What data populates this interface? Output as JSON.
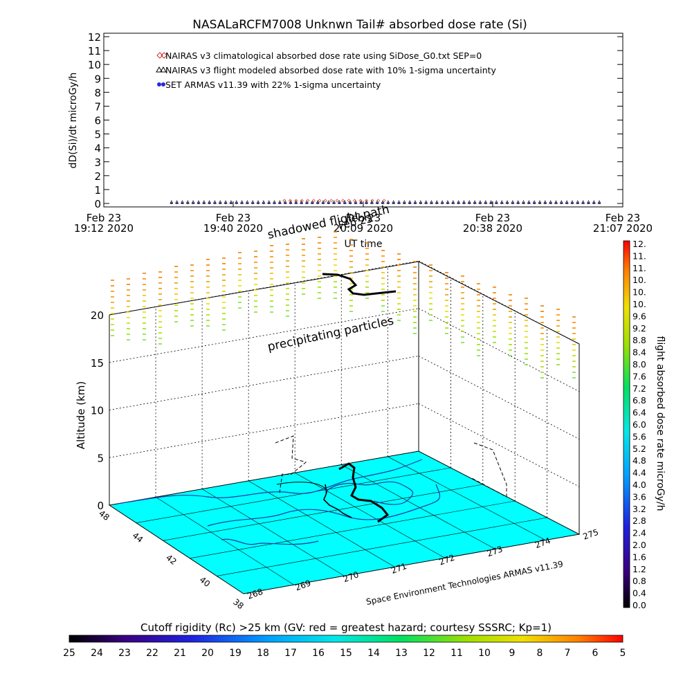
{
  "chart_data": [
    {
      "type": "scatter",
      "title": "NASALaRCFM7008  Unknwn Tail#  absorbed dose rate (Si)",
      "ylabel": "dD(Si)/dt microGy/h",
      "xlabel": "UT time",
      "ylim": [
        0,
        12
      ],
      "yticks": [
        "0",
        "1",
        "2",
        "3",
        "4",
        "5",
        "6",
        "7",
        "8",
        "9",
        "10",
        "11",
        "12"
      ],
      "xticks": [
        {
          "top": "Feb 23",
          "bottom": "19:12 2020"
        },
        {
          "top": "Feb 23",
          "bottom": "19:40 2020"
        },
        {
          "top": "Feb 23",
          "bottom": "20:09 2020"
        },
        {
          "top": "Feb 23",
          "bottom": "20:38 2020"
        },
        {
          "top": "Feb 23",
          "bottom": "21:07 2020"
        }
      ],
      "legend": [
        {
          "label": "NAIRAS v3 climatological absorbed dose rate using SiDose_G0.txt SEP=0",
          "color": "#cc3333",
          "marker": "diamond"
        },
        {
          "label": "NAIRAS v3 flight modeled absorbed dose rate with 10% 1-sigma uncertainty",
          "color": "#000000",
          "marker": "triangle"
        },
        {
          "label": "SET ARMAS v11.39 with 22% 1-sigma uncertainty",
          "color": "#2a2ae0",
          "marker": "dot"
        }
      ],
      "series_note_values": {
        "nairas_climatological": {
          "x_range_min": [
            15,
            63
          ],
          "value_level": 0.05
        },
        "nairas_flight": {
          "x_range_min": [
            15,
            111
          ],
          "value_level": 0.1
        },
        "armas": {
          "x_range_min": [
            15,
            111
          ],
          "value_level": 0.02
        }
      }
    },
    {
      "type": "scatter",
      "zlabel": "Altitude (km)",
      "zticks": [
        "0",
        "5",
        "10",
        "15",
        "20"
      ],
      "lat_ticks": [
        "48",
        "44",
        "42",
        "40",
        "38"
      ],
      "lon_ticks": [
        "268",
        "269",
        "270",
        "271",
        "272",
        "273",
        "274",
        "275"
      ],
      "annotations": [
        "shadowed flight path",
        "precipitating particles",
        "Feb 23"
      ],
      "credit": "Space Environment Technologies ARMAS v11.39",
      "colors": {
        "ground": "#00ffff",
        "coast": "#1a3aa0"
      }
    },
    {
      "type": "heatmap",
      "colorbar_label": "flight absorbed dose rate microGy/h",
      "colorbar_ticks": [
        "0.0",
        "0.4",
        "0.8",
        "1.2",
        "1.6",
        "2.0",
        "2.4",
        "2.8",
        "3.2",
        "3.6",
        "4.0",
        "4.4",
        "4.8",
        "5.2",
        "5.6",
        "6.0",
        "6.4",
        "6.8",
        "7.2",
        "7.6",
        "8.0",
        "8.4",
        "8.8",
        "9.2",
        "9.6",
        "10.",
        "10.",
        "10.",
        "11.",
        "11.",
        "12."
      ]
    },
    {
      "type": "heatmap",
      "colorbar_label": "Cutoff rigidity (Rc) >25 km (GV: red = greatest hazard; courtesy SSSRC; Kp=1)",
      "colorbar_ticks": [
        "25",
        "24",
        "23",
        "22",
        "21",
        "20",
        "19",
        "18",
        "17",
        "16",
        "15",
        "14",
        "13",
        "12",
        "11",
        "10",
        "9",
        "8",
        "7",
        "6",
        "5"
      ]
    }
  ]
}
